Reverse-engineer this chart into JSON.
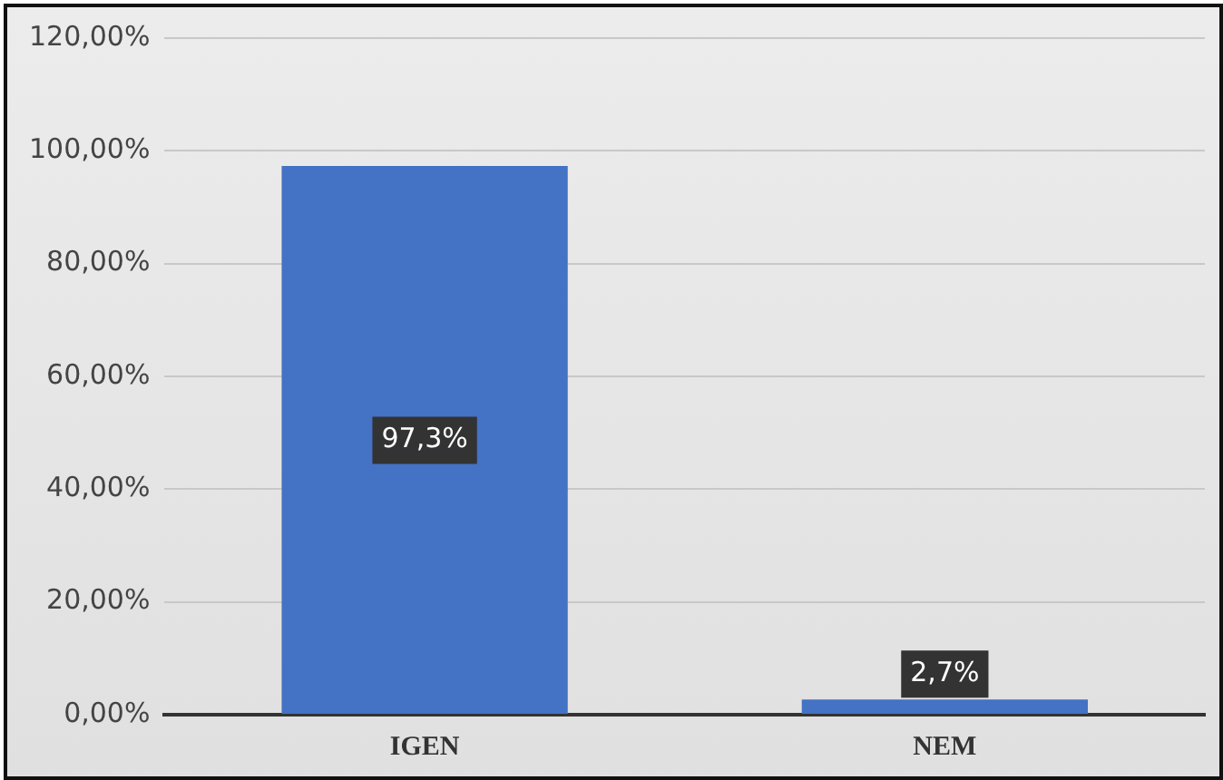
{
  "chart_data": {
    "type": "bar",
    "categories": [
      "IGEN",
      "NEM"
    ],
    "values": [
      97.3,
      2.7
    ],
    "color": "#4472c4",
    "value_labels": [
      "97,3%",
      "2,7%"
    ],
    "ylim": [
      0,
      120
    ],
    "yticks": [
      {
        "value": 0,
        "label": "0,00%"
      },
      {
        "value": 20,
        "label": "20,00%"
      },
      {
        "value": 40,
        "label": "40,00%"
      },
      {
        "value": 60,
        "label": "60,00%"
      },
      {
        "value": 80,
        "label": "80,00%"
      },
      {
        "value": 100,
        "label": "100,00%"
      },
      {
        "value": 120,
        "label": "120,00%"
      }
    ],
    "grid": "y",
    "legend": false
  }
}
